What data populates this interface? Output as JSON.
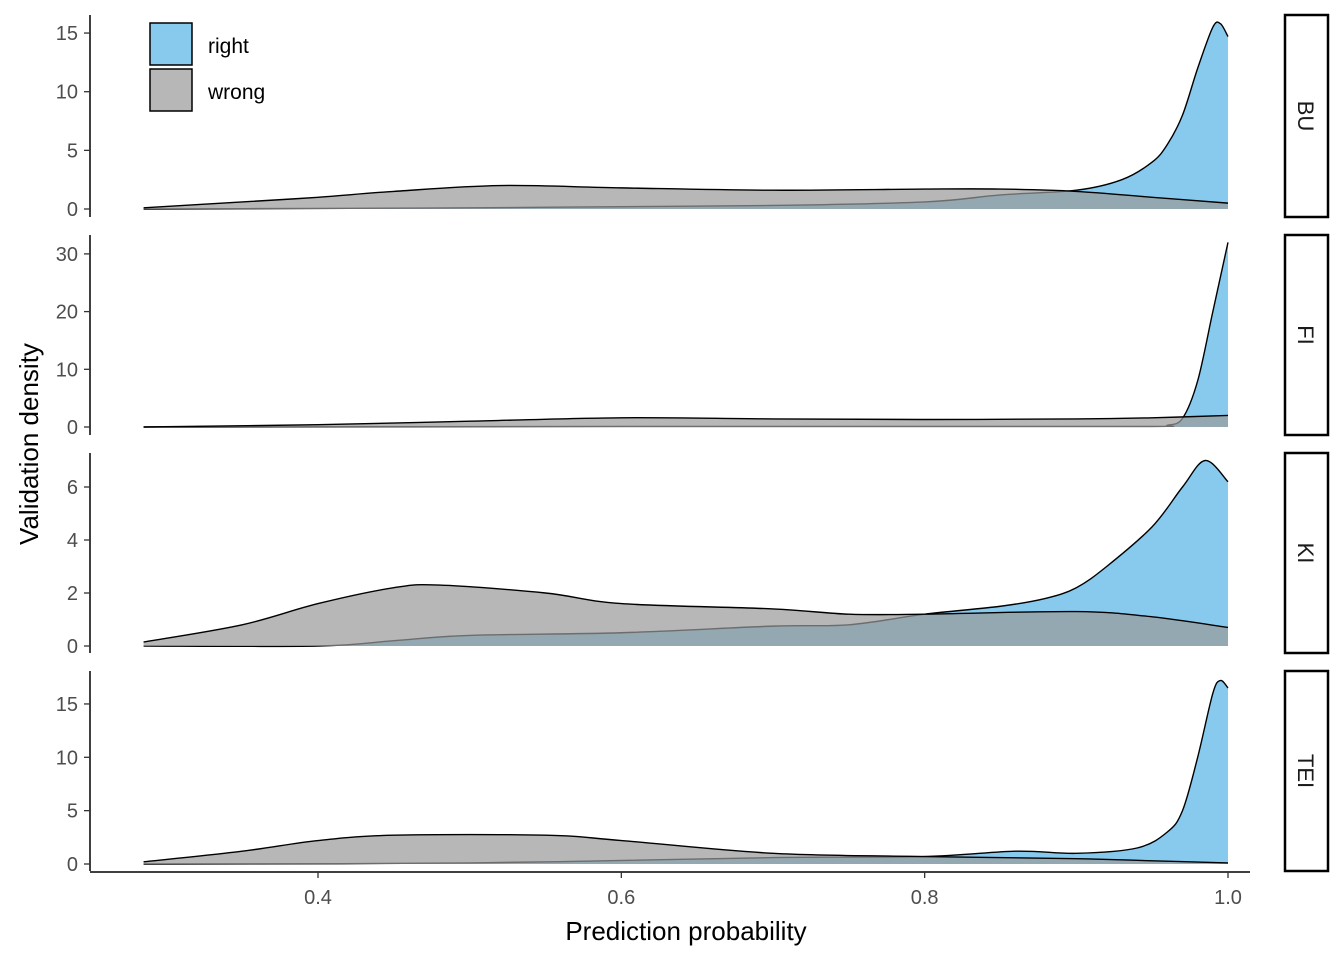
{
  "chart_data": {
    "type": "area",
    "subtype": "faceted density",
    "xlabel": "Prediction probability",
    "ylabel": "Validation density",
    "xlim": [
      0.285,
      1.0
    ],
    "x_ticks": [
      "0.4",
      "0.6",
      "0.8",
      "1.0"
    ],
    "x_tick_values": [
      0.4,
      0.6,
      0.8,
      1.0
    ],
    "grid": false,
    "legend": {
      "placement": "top-left",
      "entries": [
        "right",
        "wrong"
      ]
    },
    "colors": {
      "right": "#87CAEE",
      "wrong": "#9A9A9A",
      "overlap": "#94A6AE"
    },
    "facets": [
      {
        "label": "BU",
        "ylim": [
          0,
          16.5
        ],
        "y_ticks": [
          "0",
          "5",
          "10",
          "15"
        ],
        "y_tick_values": [
          0,
          5,
          10,
          15
        ],
        "series": [
          {
            "name": "right",
            "x": [
              0.285,
              0.4,
              0.5,
              0.6,
              0.7,
              0.8,
              0.85,
              0.9,
              0.93,
              0.95,
              0.96,
              0.97,
              0.98,
              0.99,
              0.995,
              1.0
            ],
            "y": [
              0.0,
              0.05,
              0.1,
              0.2,
              0.3,
              0.6,
              1.2,
              1.6,
              2.5,
              4.0,
              5.5,
              8.0,
              12.0,
              15.5,
              15.8,
              14.7
            ]
          },
          {
            "name": "wrong",
            "x": [
              0.285,
              0.35,
              0.4,
              0.45,
              0.52,
              0.6,
              0.7,
              0.8,
              0.85,
              0.9,
              0.95,
              1.0
            ],
            "y": [
              0.1,
              0.6,
              1.0,
              1.5,
              2.0,
              1.8,
              1.6,
              1.7,
              1.7,
              1.5,
              1.0,
              0.5
            ]
          }
        ]
      },
      {
        "label": "FI",
        "ylim": [
          0,
          33
        ],
        "y_ticks": [
          "0",
          "10",
          "20",
          "30"
        ],
        "y_tick_values": [
          0,
          10,
          20,
          30
        ],
        "series": [
          {
            "name": "right",
            "x": [
              0.285,
              0.6,
              0.8,
              0.95,
              0.96,
              0.97,
              0.98,
              0.99,
              1.0
            ],
            "y": [
              0.0,
              0.1,
              0.1,
              0.1,
              0.3,
              1.5,
              8.0,
              20.0,
              32.0
            ]
          },
          {
            "name": "wrong",
            "x": [
              0.285,
              0.4,
              0.5,
              0.6,
              0.7,
              0.8,
              0.9,
              0.95,
              1.0
            ],
            "y": [
              0.0,
              0.4,
              1.0,
              1.6,
              1.4,
              1.3,
              1.4,
              1.6,
              2.0
            ]
          }
        ]
      },
      {
        "label": "KI",
        "ylim": [
          0,
          7.2
        ],
        "y_ticks": [
          "0",
          "2",
          "4",
          "6"
        ],
        "y_tick_values": [
          0,
          2,
          4,
          6
        ],
        "series": [
          {
            "name": "right",
            "x": [
              0.285,
              0.4,
              0.45,
              0.5,
              0.6,
              0.7,
              0.75,
              0.8,
              0.85,
              0.88,
              0.9,
              0.92,
              0.95,
              0.97,
              0.985,
              1.0
            ],
            "y": [
              0.0,
              0.0,
              0.2,
              0.4,
              0.5,
              0.75,
              0.8,
              1.2,
              1.5,
              1.8,
              2.2,
              3.0,
              4.5,
              6.0,
              7.0,
              6.2
            ]
          },
          {
            "name": "wrong",
            "x": [
              0.285,
              0.35,
              0.4,
              0.45,
              0.48,
              0.55,
              0.6,
              0.7,
              0.75,
              0.8,
              0.9,
              0.95,
              1.0
            ],
            "y": [
              0.15,
              0.8,
              1.6,
              2.2,
              2.3,
              2.0,
              1.6,
              1.4,
              1.2,
              1.2,
              1.3,
              1.1,
              0.7
            ]
          }
        ]
      },
      {
        "label": "TEI",
        "ylim": [
          0,
          18
        ],
        "y_ticks": [
          "0",
          "5",
          "10",
          "15"
        ],
        "y_tick_values": [
          0,
          5,
          10,
          15
        ],
        "series": [
          {
            "name": "right",
            "x": [
              0.285,
              0.5,
              0.7,
              0.8,
              0.86,
              0.9,
              0.94,
              0.96,
              0.97,
              0.98,
              0.99,
              0.995,
              1.0
            ],
            "y": [
              0.0,
              0.1,
              0.6,
              0.7,
              1.2,
              1.0,
              1.5,
              3.0,
              5.0,
              10.0,
              16.0,
              17.2,
              16.5
            ]
          },
          {
            "name": "wrong",
            "x": [
              0.285,
              0.35,
              0.4,
              0.45,
              0.55,
              0.6,
              0.7,
              0.8,
              0.9,
              0.95,
              1.0
            ],
            "y": [
              0.2,
              1.2,
              2.2,
              2.7,
              2.7,
              2.2,
              1.0,
              0.7,
              0.5,
              0.3,
              0.1
            ]
          }
        ]
      }
    ]
  }
}
